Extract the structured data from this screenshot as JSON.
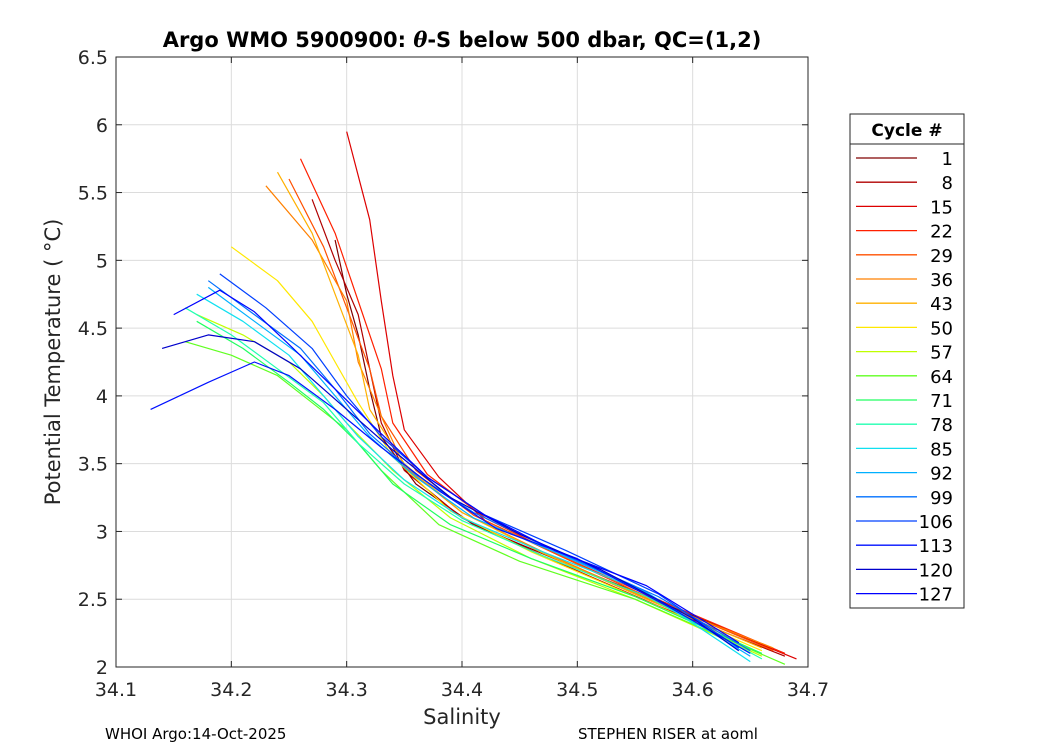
{
  "chart_data": {
    "type": "line",
    "title_prefix": "Argo WMO 5900900: ",
    "title_theta": "θ",
    "title_suffix": "-S below 500 dbar,  QC=(1,2)",
    "xlabel": "Salinity",
    "ylabel": "Potential Temperature ( °C)",
    "xlim": [
      34.1,
      34.7
    ],
    "ylim": [
      2.0,
      6.5
    ],
    "xticks": [
      34.1,
      34.2,
      34.3,
      34.4,
      34.5,
      34.6,
      34.7
    ],
    "xtick_labels": [
      "34.1",
      "34.2",
      "34.3",
      "34.4",
      "34.5",
      "34.6",
      "34.7"
    ],
    "yticks": [
      2.0,
      2.5,
      3.0,
      3.5,
      4.0,
      4.5,
      5.0,
      5.5,
      6.0,
      6.5
    ],
    "ytick_labels": [
      "2",
      "2.5",
      "3",
      "3.5",
      "4",
      "4.5",
      "5",
      "5.5",
      "6",
      "6.5"
    ],
    "grid": true,
    "legend_title": "Cycle #",
    "legend_position": "outside-right",
    "series": [
      {
        "name": "1",
        "color": "#800000",
        "values": [
          [
            34.29,
            5.15
          ],
          [
            34.3,
            4.75
          ],
          [
            34.31,
            4.45
          ],
          [
            34.32,
            4.05
          ],
          [
            34.33,
            3.7
          ],
          [
            34.36,
            3.35
          ],
          [
            34.41,
            3.05
          ],
          [
            34.48,
            2.8
          ],
          [
            34.58,
            2.45
          ],
          [
            34.68,
            2.1
          ]
        ]
      },
      {
        "name": "8",
        "color": "#b00000",
        "values": [
          [
            34.27,
            5.45
          ],
          [
            34.29,
            5.0
          ],
          [
            34.31,
            4.6
          ],
          [
            34.32,
            4.2
          ],
          [
            34.33,
            3.8
          ],
          [
            34.35,
            3.45
          ],
          [
            34.4,
            3.1
          ],
          [
            34.47,
            2.82
          ],
          [
            34.57,
            2.45
          ],
          [
            34.68,
            2.08
          ]
        ]
      },
      {
        "name": "15",
        "color": "#dd0000",
        "values": [
          [
            34.3,
            5.95
          ],
          [
            34.32,
            5.3
          ],
          [
            34.33,
            4.7
          ],
          [
            34.34,
            4.15
          ],
          [
            34.35,
            3.75
          ],
          [
            34.38,
            3.4
          ],
          [
            34.42,
            3.08
          ],
          [
            34.49,
            2.8
          ],
          [
            34.58,
            2.44
          ],
          [
            34.69,
            2.06
          ]
        ]
      },
      {
        "name": "22",
        "color": "#ff2000",
        "values": [
          [
            34.26,
            5.75
          ],
          [
            34.29,
            5.2
          ],
          [
            34.31,
            4.7
          ],
          [
            34.33,
            4.2
          ],
          [
            34.34,
            3.8
          ],
          [
            34.37,
            3.42
          ],
          [
            34.42,
            3.1
          ],
          [
            34.48,
            2.84
          ],
          [
            34.58,
            2.46
          ],
          [
            34.68,
            2.1
          ]
        ]
      },
      {
        "name": "29",
        "color": "#ff5000",
        "values": [
          [
            34.25,
            5.6
          ],
          [
            34.28,
            5.1
          ],
          [
            34.3,
            4.65
          ],
          [
            34.32,
            4.2
          ],
          [
            34.33,
            3.85
          ],
          [
            34.36,
            3.45
          ],
          [
            34.41,
            3.12
          ],
          [
            34.48,
            2.84
          ],
          [
            34.57,
            2.48
          ],
          [
            34.67,
            2.12
          ]
        ]
      },
      {
        "name": "36",
        "color": "#ff8000",
        "values": [
          [
            34.23,
            5.55
          ],
          [
            34.27,
            5.15
          ],
          [
            34.3,
            4.7
          ],
          [
            34.31,
            4.25
          ],
          [
            34.33,
            3.85
          ],
          [
            34.35,
            3.48
          ],
          [
            34.4,
            3.14
          ],
          [
            34.47,
            2.85
          ],
          [
            34.57,
            2.47
          ],
          [
            34.67,
            2.14
          ]
        ]
      },
      {
        "name": "43",
        "color": "#ffb000",
        "values": [
          [
            34.24,
            5.65
          ],
          [
            34.27,
            5.2
          ],
          [
            34.29,
            4.75
          ],
          [
            34.31,
            4.3
          ],
          [
            34.32,
            3.9
          ],
          [
            34.35,
            3.5
          ],
          [
            34.4,
            3.14
          ],
          [
            34.47,
            2.84
          ],
          [
            34.56,
            2.5
          ],
          [
            34.66,
            2.14
          ]
        ]
      },
      {
        "name": "50",
        "color": "#ffe800",
        "values": [
          [
            34.2,
            5.1
          ],
          [
            34.24,
            4.85
          ],
          [
            34.27,
            4.55
          ],
          [
            34.29,
            4.25
          ],
          [
            34.31,
            3.95
          ],
          [
            34.34,
            3.55
          ],
          [
            34.39,
            3.15
          ],
          [
            34.46,
            2.85
          ],
          [
            34.55,
            2.52
          ],
          [
            34.66,
            2.12
          ]
        ]
      },
      {
        "name": "57",
        "color": "#c0ff00",
        "values": [
          [
            34.17,
            4.6
          ],
          [
            34.21,
            4.45
          ],
          [
            34.25,
            4.25
          ],
          [
            34.28,
            4.0
          ],
          [
            34.3,
            3.8
          ],
          [
            34.34,
            3.45
          ],
          [
            34.39,
            3.1
          ],
          [
            34.46,
            2.8
          ],
          [
            34.55,
            2.5
          ],
          [
            34.66,
            2.08
          ]
        ]
      },
      {
        "name": "64",
        "color": "#60ff20",
        "values": [
          [
            34.16,
            4.4
          ],
          [
            34.2,
            4.3
          ],
          [
            34.24,
            4.15
          ],
          [
            34.27,
            3.95
          ],
          [
            34.3,
            3.75
          ],
          [
            34.33,
            3.45
          ],
          [
            34.38,
            3.05
          ],
          [
            34.45,
            2.78
          ],
          [
            34.55,
            2.5
          ],
          [
            34.68,
            2.02
          ]
        ]
      },
      {
        "name": "71",
        "color": "#20ff60",
        "values": [
          [
            34.17,
            4.55
          ],
          [
            34.21,
            4.35
          ],
          [
            34.25,
            4.1
          ],
          [
            34.28,
            3.9
          ],
          [
            34.31,
            3.65
          ],
          [
            34.34,
            3.35
          ],
          [
            34.39,
            3.05
          ],
          [
            34.46,
            2.8
          ],
          [
            34.55,
            2.52
          ],
          [
            34.66,
            2.1
          ]
        ]
      },
      {
        "name": "78",
        "color": "#20ffb0",
        "values": [
          [
            34.16,
            4.65
          ],
          [
            34.2,
            4.45
          ],
          [
            34.24,
            4.2
          ],
          [
            34.28,
            3.95
          ],
          [
            34.31,
            3.65
          ],
          [
            34.35,
            3.35
          ],
          [
            34.4,
            3.08
          ],
          [
            34.47,
            2.82
          ],
          [
            34.56,
            2.52
          ],
          [
            34.66,
            2.06
          ]
        ]
      },
      {
        "name": "85",
        "color": "#10e0f0",
        "values": [
          [
            34.17,
            4.75
          ],
          [
            34.21,
            4.55
          ],
          [
            34.25,
            4.3
          ],
          [
            34.28,
            4.0
          ],
          [
            34.31,
            3.7
          ],
          [
            34.35,
            3.38
          ],
          [
            34.4,
            3.1
          ],
          [
            34.47,
            2.85
          ],
          [
            34.56,
            2.55
          ],
          [
            34.65,
            2.04
          ]
        ]
      },
      {
        "name": "92",
        "color": "#00b0ff",
        "values": [
          [
            34.18,
            4.8
          ],
          [
            34.22,
            4.55
          ],
          [
            34.26,
            4.3
          ],
          [
            34.29,
            4.0
          ],
          [
            34.32,
            3.7
          ],
          [
            34.36,
            3.4
          ],
          [
            34.41,
            3.1
          ],
          [
            34.48,
            2.85
          ],
          [
            34.56,
            2.55
          ],
          [
            34.65,
            2.08
          ]
        ]
      },
      {
        "name": "99",
        "color": "#0070ff",
        "values": [
          [
            34.18,
            4.85
          ],
          [
            34.22,
            4.6
          ],
          [
            34.26,
            4.35
          ],
          [
            34.29,
            4.05
          ],
          [
            34.32,
            3.72
          ],
          [
            34.36,
            3.42
          ],
          [
            34.41,
            3.14
          ],
          [
            34.48,
            2.86
          ],
          [
            34.57,
            2.52
          ],
          [
            34.65,
            2.12
          ]
        ]
      },
      {
        "name": "106",
        "color": "#0040ff",
        "values": [
          [
            34.19,
            4.9
          ],
          [
            34.23,
            4.65
          ],
          [
            34.27,
            4.35
          ],
          [
            34.3,
            4.0
          ],
          [
            34.33,
            3.7
          ],
          [
            34.37,
            3.4
          ],
          [
            34.42,
            3.12
          ],
          [
            34.49,
            2.86
          ],
          [
            34.57,
            2.54
          ],
          [
            34.64,
            2.14
          ]
        ]
      },
      {
        "name": "113",
        "color": "#0010ff",
        "values": [
          [
            34.13,
            3.9
          ],
          [
            34.18,
            4.1
          ],
          [
            34.22,
            4.25
          ],
          [
            34.25,
            4.15
          ],
          [
            34.29,
            3.9
          ],
          [
            34.33,
            3.62
          ],
          [
            34.38,
            3.3
          ],
          [
            34.43,
            3.02
          ],
          [
            34.5,
            2.8
          ],
          [
            34.58,
            2.44
          ],
          [
            34.65,
            2.1
          ]
        ]
      },
      {
        "name": "120",
        "color": "#0000cc",
        "values": [
          [
            34.14,
            4.35
          ],
          [
            34.18,
            4.45
          ],
          [
            34.22,
            4.4
          ],
          [
            34.26,
            4.2
          ],
          [
            34.3,
            3.9
          ],
          [
            34.34,
            3.6
          ],
          [
            34.39,
            3.25
          ],
          [
            34.45,
            2.98
          ],
          [
            34.52,
            2.72
          ],
          [
            34.6,
            2.36
          ],
          [
            34.64,
            2.12
          ]
        ]
      },
      {
        "name": "127",
        "color": "#0000ff",
        "values": [
          [
            34.15,
            4.6
          ],
          [
            34.19,
            4.78
          ],
          [
            34.22,
            4.62
          ],
          [
            34.25,
            4.38
          ],
          [
            34.29,
            4.05
          ],
          [
            34.33,
            3.72
          ],
          [
            34.37,
            3.4
          ],
          [
            34.42,
            3.12
          ],
          [
            34.48,
            2.86
          ],
          [
            34.56,
            2.6
          ],
          [
            34.64,
            2.18
          ]
        ]
      }
    ]
  },
  "footer": {
    "left": "WHOI Argo:14-Oct-2025",
    "right": "STEPHEN RISER at aoml"
  }
}
